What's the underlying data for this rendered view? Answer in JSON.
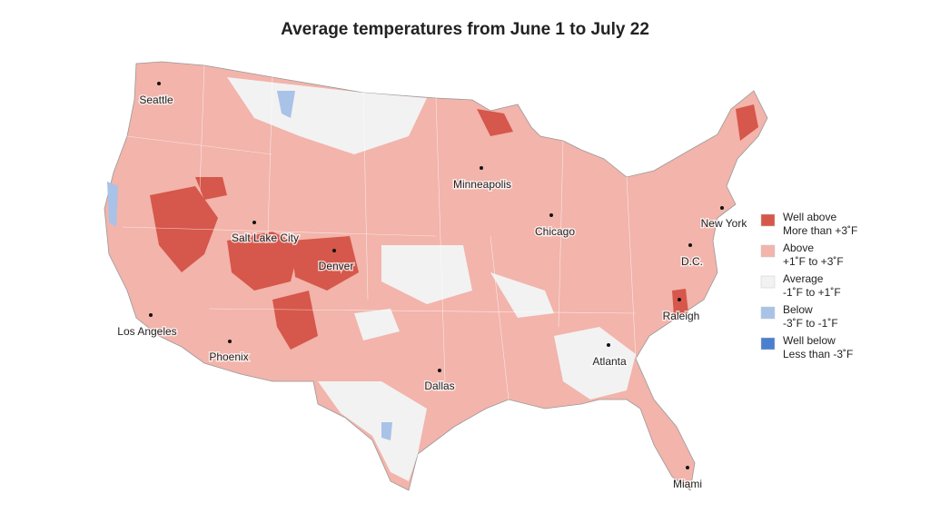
{
  "title": "Average temperatures from June 1 to July 22",
  "cities": [
    "Seattle",
    "Minneapolis",
    "Chicago",
    "New York",
    "D.C.",
    "Salt Lake City",
    "Denver",
    "Raleigh",
    "Los Angeles",
    "Phoenix",
    "Atlanta",
    "Dallas",
    "Miami"
  ],
  "legend": {
    "items": [
      {
        "label": "Well above",
        "range": "More than +3˚F",
        "color": "#d6574b"
      },
      {
        "label": "Above",
        "range": "+1˚F to +3˚F",
        "color": "#f2b4ab"
      },
      {
        "label": "Average",
        "range": "-1˚F to +1˚F",
        "color": "#f2f2f2"
      },
      {
        "label": "Below",
        "range": "-3˚F to -1˚F",
        "color": "#a9c2e8"
      },
      {
        "label": "Well below",
        "range": "Less than -3˚F",
        "color": "#4a7fd0"
      }
    ]
  }
}
